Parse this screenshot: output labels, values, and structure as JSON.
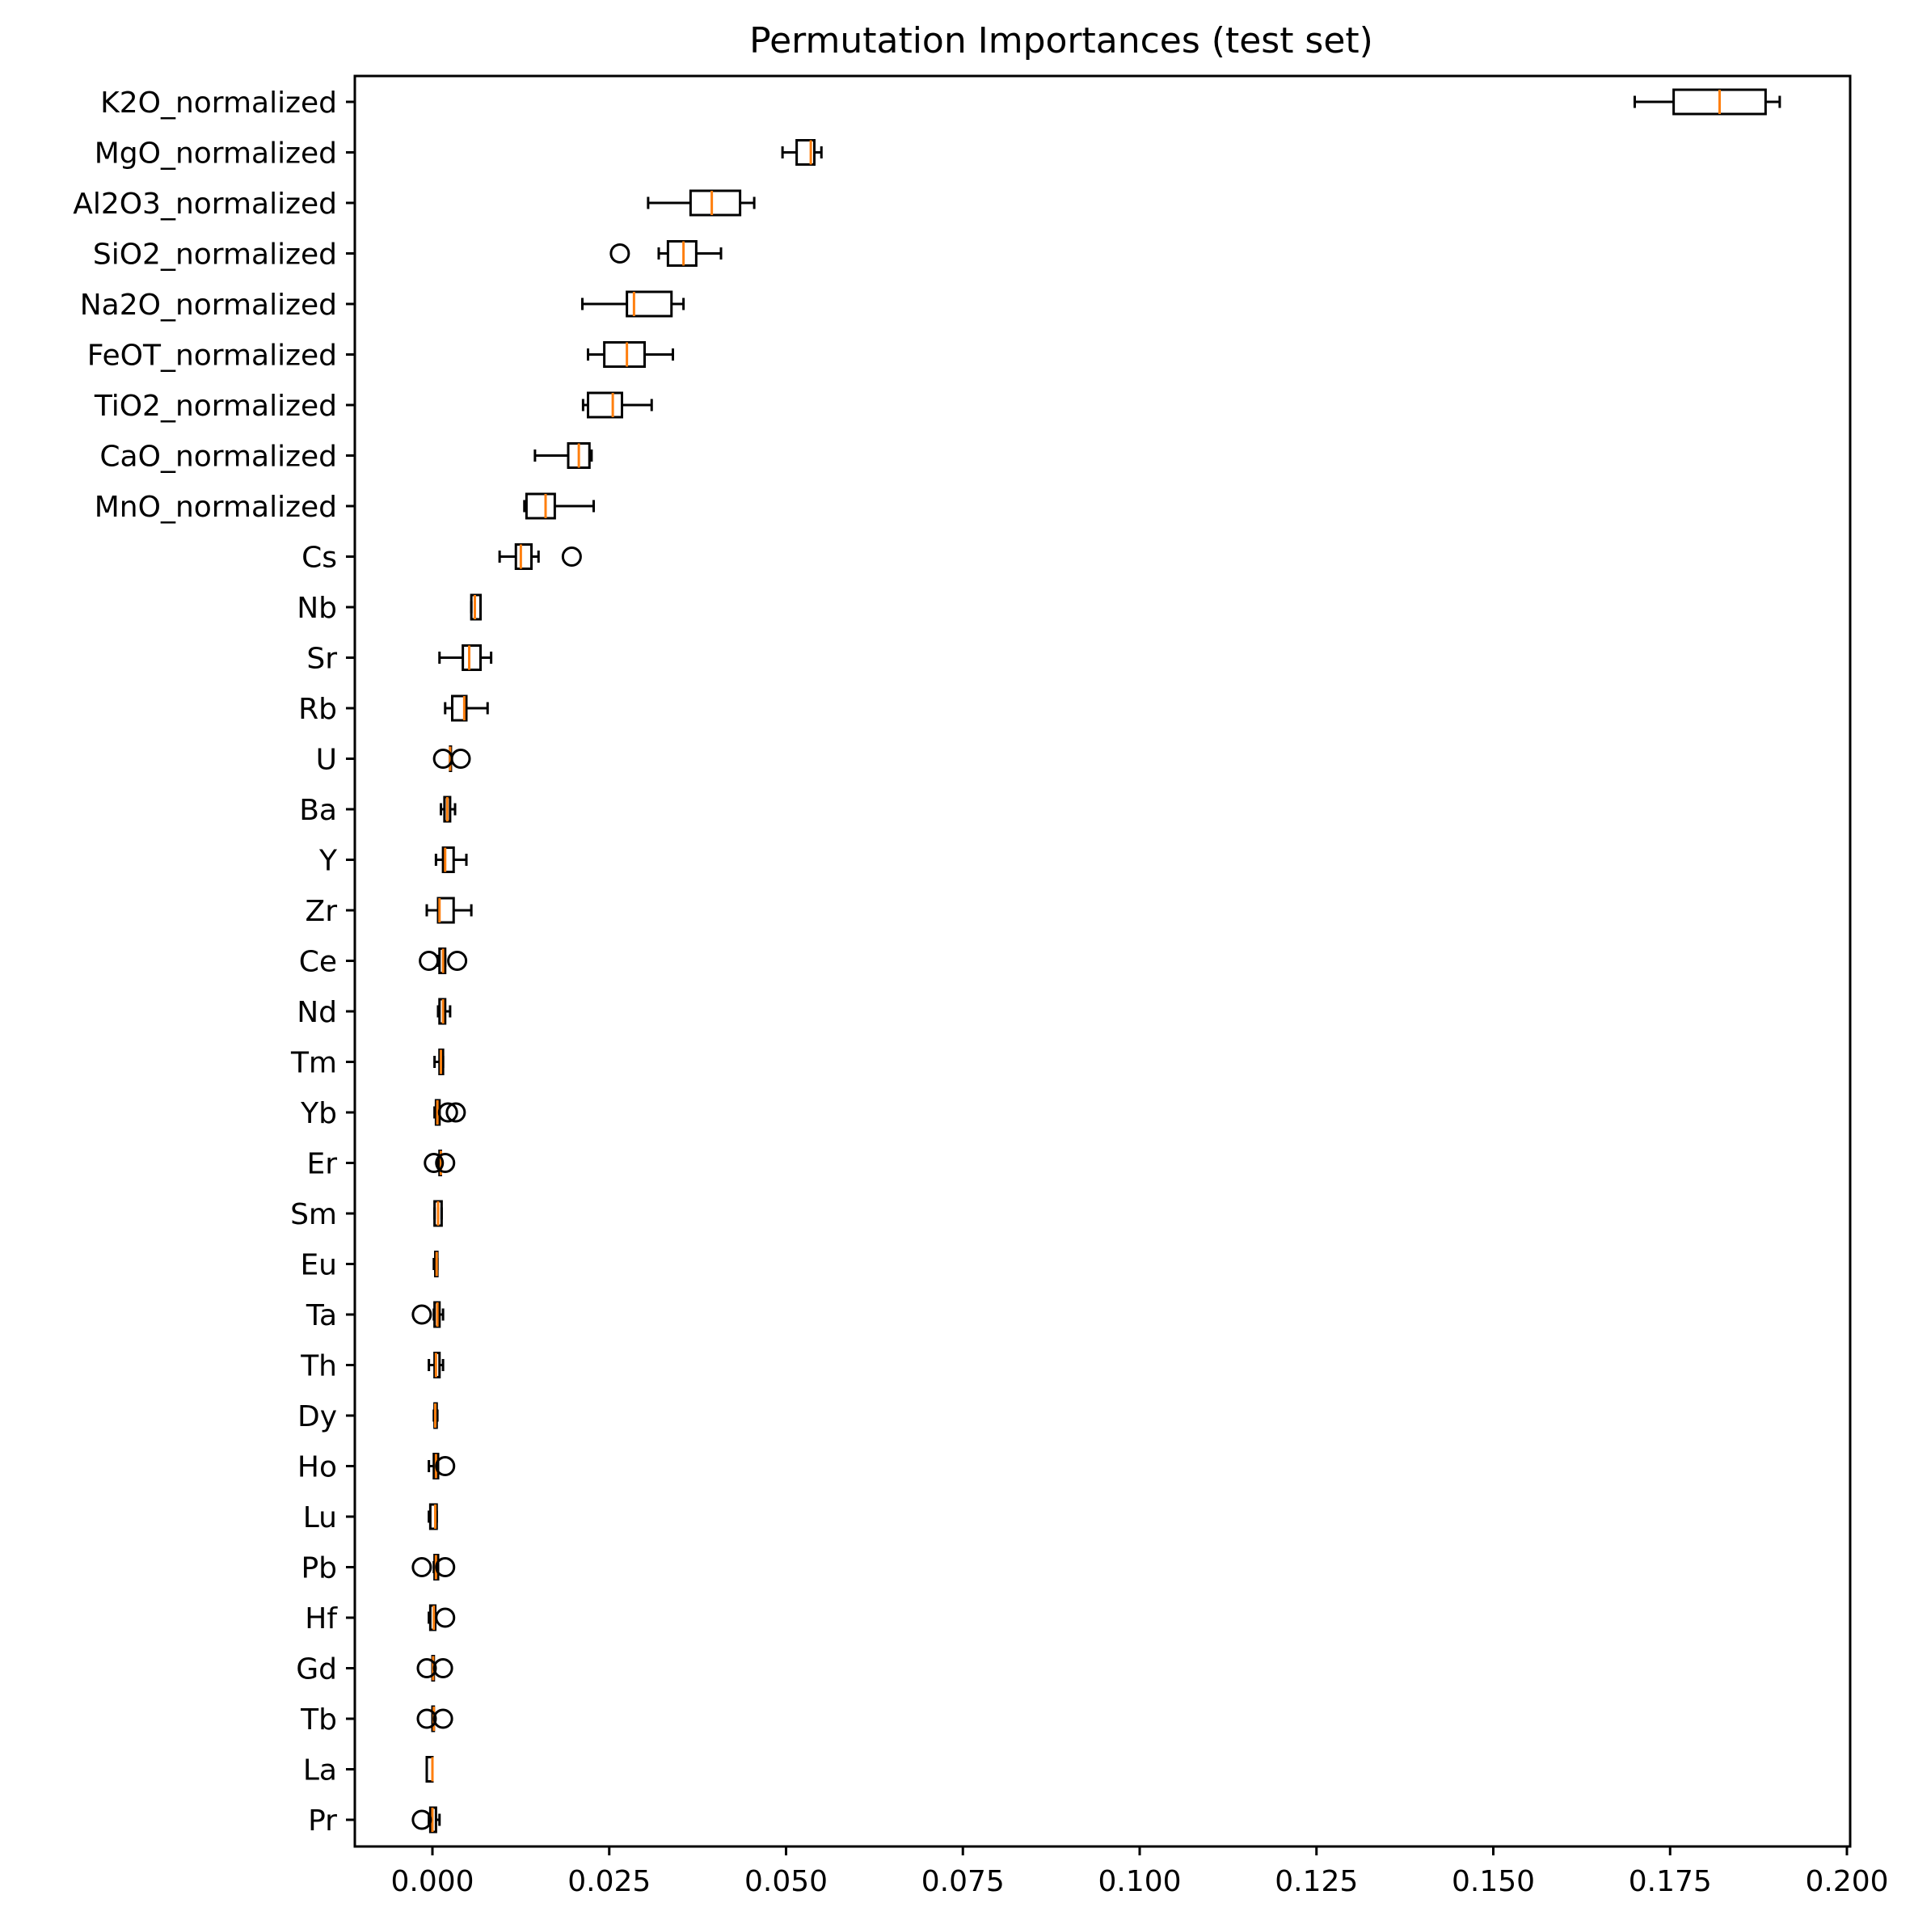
{
  "chart_data": {
    "type": "boxplot",
    "orientation": "horizontal",
    "title": "Permutation Importances (test set)",
    "xlabel": "",
    "ylabel": "",
    "xlim": [
      -0.011,
      0.2
    ],
    "xticks": [
      0.0,
      0.025,
      0.05,
      0.075,
      0.1,
      0.125,
      0.15,
      0.175,
      0.2
    ],
    "xtick_labels": [
      "0.000",
      "0.025",
      "0.050",
      "0.075",
      "0.100",
      "0.125",
      "0.150",
      "0.175",
      "0.200"
    ],
    "grid": false,
    "colors": {
      "box": "#000000",
      "median": "#ff7f0e",
      "flier": "#000000"
    },
    "categories": [
      "K2O_normalized",
      "MgO_normalized",
      "Al2O3_normalized",
      "SiO2_normalized",
      "Na2O_normalized",
      "FeOT_normalized",
      "TiO2_normalized",
      "CaO_normalized",
      "MnO_normalized",
      "Cs",
      "Nb",
      "Sr",
      "Rb",
      "U",
      "Ba",
      "Y",
      "Zr",
      "Ce",
      "Nd",
      "Tm",
      "Yb",
      "Er",
      "Sm",
      "Eu",
      "Ta",
      "Th",
      "Dy",
      "Ho",
      "Lu",
      "Pb",
      "Hf",
      "Gd",
      "Tb",
      "La",
      "Pr"
    ],
    "boxes": [
      {
        "label": "K2O_normalized",
        "whislo": 0.17,
        "q1": 0.1755,
        "med": 0.182,
        "q3": 0.1885,
        "whishi": 0.1905,
        "fliers": []
      },
      {
        "label": "MgO_normalized",
        "whislo": 0.0495,
        "q1": 0.0515,
        "med": 0.0535,
        "q3": 0.054,
        "whishi": 0.055,
        "fliers": []
      },
      {
        "label": "Al2O3_normalized",
        "whislo": 0.0305,
        "q1": 0.0365,
        "med": 0.0395,
        "q3": 0.0435,
        "whishi": 0.0455,
        "fliers": []
      },
      {
        "label": "SiO2_normalized",
        "whislo": 0.032,
        "q1": 0.0333,
        "med": 0.0355,
        "q3": 0.0373,
        "whishi": 0.0408,
        "fliers": [
          0.0265
        ]
      },
      {
        "label": "Na2O_normalized",
        "whislo": 0.0212,
        "q1": 0.0275,
        "med": 0.0285,
        "q3": 0.0338,
        "whishi": 0.0355,
        "fliers": []
      },
      {
        "label": "FeOT_normalized",
        "whislo": 0.022,
        "q1": 0.0243,
        "med": 0.0275,
        "q3": 0.03,
        "whishi": 0.034,
        "fliers": []
      },
      {
        "label": "TiO2_normalized",
        "whislo": 0.0213,
        "q1": 0.022,
        "med": 0.0255,
        "q3": 0.0268,
        "whishi": 0.031,
        "fliers": []
      },
      {
        "label": "CaO_normalized",
        "whislo": 0.0145,
        "q1": 0.0192,
        "med": 0.0207,
        "q3": 0.0222,
        "whishi": 0.0225,
        "fliers": []
      },
      {
        "label": "MnO_normalized",
        "whislo": 0.013,
        "q1": 0.0133,
        "med": 0.016,
        "q3": 0.0173,
        "whishi": 0.0228,
        "fliers": []
      },
      {
        "label": "Cs",
        "whislo": 0.0095,
        "q1": 0.0118,
        "med": 0.0125,
        "q3": 0.014,
        "whishi": 0.015,
        "fliers": [
          0.0197
        ]
      },
      {
        "label": "Nb",
        "whislo": 0.0055,
        "q1": 0.0055,
        "med": 0.006,
        "q3": 0.0068,
        "whishi": 0.0068,
        "fliers": []
      },
      {
        "label": "Sr",
        "whislo": 0.001,
        "q1": 0.0043,
        "med": 0.0052,
        "q3": 0.0068,
        "whishi": 0.0083,
        "fliers": []
      },
      {
        "label": "Rb",
        "whislo": 0.0018,
        "q1": 0.0028,
        "med": 0.0045,
        "q3": 0.0048,
        "whishi": 0.0078,
        "fliers": []
      },
      {
        "label": "U",
        "whislo": 0.0025,
        "q1": 0.0025,
        "med": 0.0025,
        "q3": 0.0025,
        "whishi": 0.0025,
        "fliers": [
          0.0015,
          0.004
        ]
      },
      {
        "label": "Ba",
        "whislo": 0.0012,
        "q1": 0.0017,
        "med": 0.0021,
        "q3": 0.0025,
        "whishi": 0.0032,
        "fliers": []
      },
      {
        "label": "Y",
        "whislo": 0.0005,
        "q1": 0.0015,
        "med": 0.0018,
        "q3": 0.003,
        "whishi": 0.0048,
        "fliers": []
      },
      {
        "label": "Zr",
        "whislo": -0.0008,
        "q1": 0.0008,
        "med": 0.001,
        "q3": 0.003,
        "whishi": 0.0055,
        "fliers": []
      },
      {
        "label": "Ce",
        "whislo": 0.0008,
        "q1": 0.001,
        "med": 0.0015,
        "q3": 0.0018,
        "whishi": 0.0018,
        "fliers": [
          -0.0005,
          0.0035
        ]
      },
      {
        "label": "Nd",
        "whislo": 0.0008,
        "q1": 0.001,
        "med": 0.0015,
        "q3": 0.0018,
        "whishi": 0.0025,
        "fliers": []
      },
      {
        "label": "Tm",
        "whislo": 0.0003,
        "q1": 0.001,
        "med": 0.0012,
        "q3": 0.0015,
        "whishi": 0.0015,
        "fliers": []
      },
      {
        "label": "Yb",
        "whislo": 0.0003,
        "q1": 0.0005,
        "med": 0.0007,
        "q3": 0.001,
        "whishi": 0.001,
        "fliers": [
          0.0022,
          0.0033
        ]
      },
      {
        "label": "Er",
        "whislo": 0.0008,
        "q1": 0.001,
        "med": 0.0012,
        "q3": 0.0012,
        "whishi": 0.0012,
        "fliers": [
          0.0002,
          0.0018
        ]
      },
      {
        "label": "Sm",
        "whislo": 0.0003,
        "q1": 0.0003,
        "med": 0.0008,
        "q3": 0.0013,
        "whishi": 0.0013,
        "fliers": []
      },
      {
        "label": "Eu",
        "whislo": 0.0002,
        "q1": 0.0004,
        "med": 0.0006,
        "q3": 0.0007,
        "whishi": 0.0007,
        "fliers": []
      },
      {
        "label": "Ta",
        "whislo": 0.0002,
        "q1": 0.0003,
        "med": 0.0007,
        "q3": 0.001,
        "whishi": 0.0015,
        "fliers": [
          -0.0015
        ]
      },
      {
        "label": "Th",
        "whislo": -0.0005,
        "q1": 0.0003,
        "med": 0.0005,
        "q3": 0.001,
        "whishi": 0.0015,
        "fliers": []
      },
      {
        "label": "Dy",
        "whislo": 0.0002,
        "q1": 0.0003,
        "med": 0.0004,
        "q3": 0.0006,
        "whishi": 0.0007,
        "fliers": []
      },
      {
        "label": "Ho",
        "whislo": -0.0005,
        "q1": 0.0002,
        "med": 0.0005,
        "q3": 0.0008,
        "whishi": 0.0008,
        "fliers": [
          0.0018
        ]
      },
      {
        "label": "Lu",
        "whislo": -0.0005,
        "q1": -0.0003,
        "med": 0.0004,
        "q3": 0.0006,
        "whishi": 0.0006,
        "fliers": []
      },
      {
        "label": "Pb",
        "whislo": 0.0002,
        "q1": 0.0003,
        "med": 0.0005,
        "q3": 0.0008,
        "whishi": 0.0008,
        "fliers": [
          -0.0015,
          0.0018
        ]
      },
      {
        "label": "Hf",
        "whislo": -0.0005,
        "q1": -0.0003,
        "med": 0.0002,
        "q3": 0.0004,
        "whishi": 0.0004,
        "fliers": [
          0.0018
        ]
      },
      {
        "label": "Gd",
        "whislo": 0.0,
        "q1": 0.0,
        "med": 0.0001,
        "q3": 0.0002,
        "whishi": 0.0002,
        "fliers": [
          -0.0008,
          0.0015
        ]
      },
      {
        "label": "Tb",
        "whislo": 0.0,
        "q1": 0.0,
        "med": 0.0002,
        "q3": 0.0002,
        "whishi": 0.0002,
        "fliers": [
          -0.0008,
          0.0015
        ]
      },
      {
        "label": "La",
        "whislo": -0.0008,
        "q1": -0.0008,
        "med": 0.0,
        "q3": 0.0,
        "whishi": 0.0,
        "fliers": []
      },
      {
        "label": "Pr",
        "whislo": -0.0005,
        "q1": -0.0003,
        "med": 0.0,
        "q3": 0.0005,
        "whishi": 0.001,
        "fliers": [
          -0.0015
        ]
      }
    ]
  }
}
